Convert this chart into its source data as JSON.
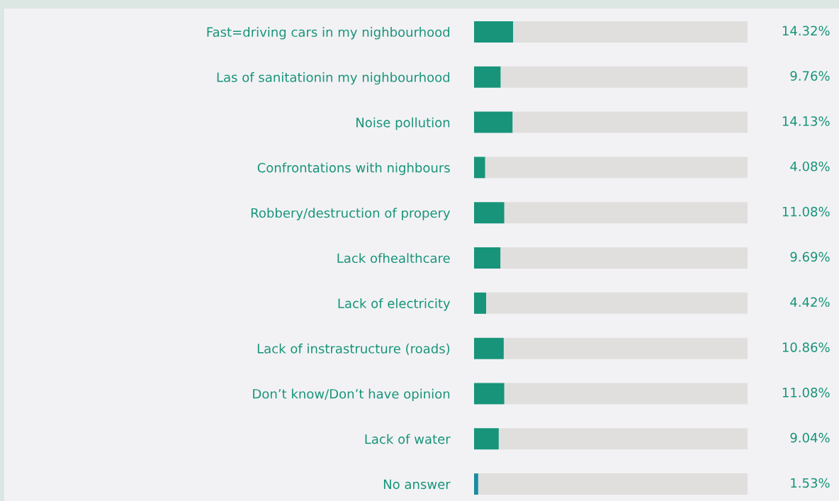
{
  "chart_data": {
    "type": "bar",
    "orientation": "horizontal",
    "stacked": true,
    "categories": [
      "Fast=driving cars in my nighbourhood",
      "Las of sanitationin my nighbourhood",
      "Noise pollution",
      "Confrontations with nighbours",
      "Robbery/destruction of propery",
      "Lack ofhealthcare",
      "Lack of electricity",
      "Lack of instrastructure (roads)",
      "Don’t know/Don’t have opinion",
      "Lack of water",
      "No answer"
    ],
    "series": [
      {
        "colors": [
          "#17947a",
          "#17947a",
          "#17947a",
          "#17947a",
          "#17947a",
          "#17947a",
          "#17947a",
          "#17947a",
          "#17947a",
          "#17947a",
          "#1a8ca0"
        ],
        "values": [
          14.32,
          9.76,
          14.13,
          4.08,
          11.08,
          9.69,
          4.42,
          10.86,
          11.08,
          9.04,
          1.53
        ],
        "value_labels": [
          "14.32%",
          "9.76%",
          "14.13%",
          "4.08%",
          "11.08%",
          "9.69%",
          "4.42%",
          "10.86%",
          "11.08%",
          "9.04%",
          "1.53%"
        ]
      },
      {
        "color": "#e0dfdd",
        "values": [
          85.68,
          90.24,
          85.87,
          95.92,
          88.92,
          90.31,
          95.58,
          89.14,
          88.92,
          90.96,
          98.47
        ]
      }
    ],
    "xlim": [
      0,
      100
    ],
    "tick_labels": "y",
    "legend": false
  }
}
